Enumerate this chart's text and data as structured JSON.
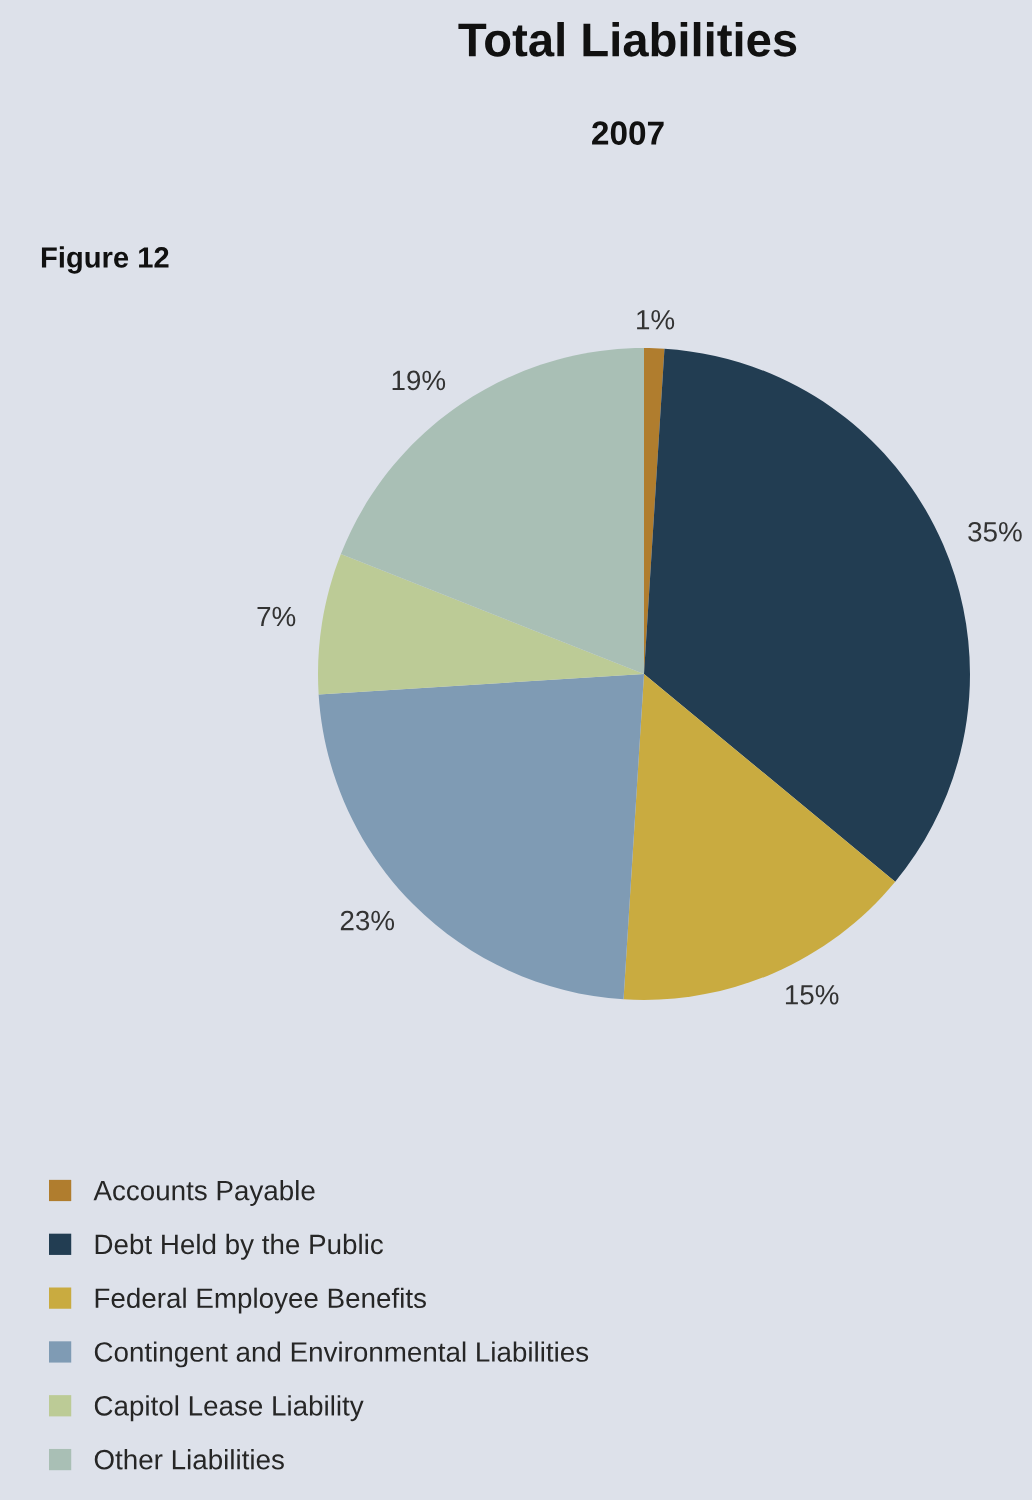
{
  "chart_data": {
    "type": "pie",
    "title": "Total Liabilities",
    "subtitle": "2007",
    "annotations": [
      "Figure 12"
    ],
    "categories": [
      "Accounts Payable",
      "Debt Held by the Public",
      "Federal Employee Benefits",
      "Contingent and Environmental Liabilities",
      "Capitol Lease Liability",
      "Other Liabilities"
    ],
    "values": [
      1,
      35,
      15,
      23,
      7,
      19
    ],
    "value_labels": [
      "1%",
      "35%",
      "15%",
      "23%",
      "7%",
      "19%"
    ],
    "colors": [
      "#b07d2e",
      "#223d52",
      "#c9ab40",
      "#7f9bb4",
      "#bccb96",
      "#a9bfb5"
    ],
    "legend": "bottom left"
  }
}
